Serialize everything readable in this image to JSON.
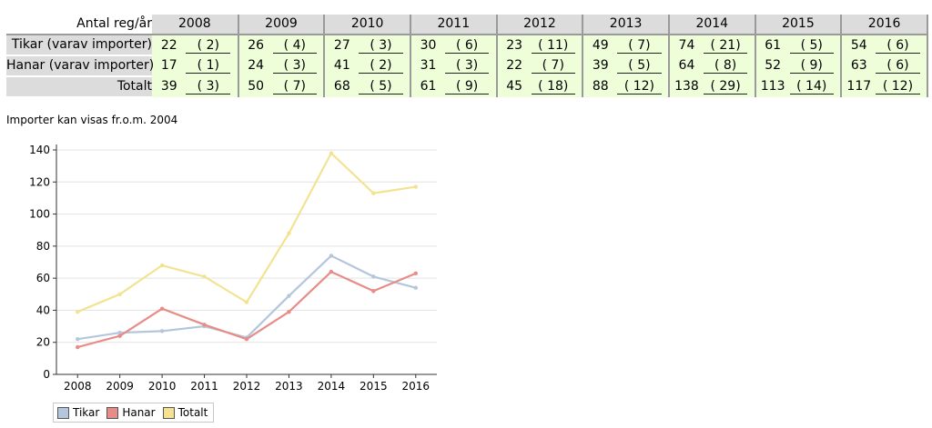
{
  "table": {
    "corner_label": "Antal reg/år",
    "years": [
      "2008",
      "2009",
      "2010",
      "2011",
      "2012",
      "2013",
      "2014",
      "2015",
      "2016"
    ],
    "rows": [
      {
        "label": "Tikar (varav importer)",
        "values": [
          "22",
          "26",
          "27",
          "30",
          "23",
          "49",
          "74",
          "61",
          "54"
        ],
        "imports": [
          "( 2)",
          "( 4)",
          "( 3)",
          "( 6)",
          "( 11)",
          "( 7)",
          "( 21)",
          "( 5)",
          "( 6)"
        ]
      },
      {
        "label": "Hanar (varav importer)",
        "values": [
          "17",
          "24",
          "41",
          "31",
          "22",
          "39",
          "64",
          "52",
          "63"
        ],
        "imports": [
          "( 1)",
          "( 3)",
          "( 2)",
          "( 3)",
          "( 7)",
          "( 5)",
          "( 8)",
          "( 9)",
          "( 6)"
        ]
      },
      {
        "label": "Totalt",
        "values": [
          "39",
          "50",
          "68",
          "61",
          "45",
          "88",
          "138",
          "113",
          "117"
        ],
        "imports": [
          "( 3)",
          "( 7)",
          "( 5)",
          "( 9)",
          "( 18)",
          "( 12)",
          "( 29)",
          "( 14)",
          "( 12)"
        ]
      }
    ]
  },
  "note": "Importer kan visas fr.o.m. 2004",
  "chart_data": {
    "type": "line",
    "categories": [
      "2008",
      "2009",
      "2010",
      "2011",
      "2012",
      "2013",
      "2014",
      "2015",
      "2016"
    ],
    "series": [
      {
        "name": "Tikar",
        "values": [
          22,
          26,
          27,
          30,
          23,
          49,
          74,
          61,
          54
        ],
        "color": "#b4c6dc"
      },
      {
        "name": "Hanar",
        "values": [
          17,
          24,
          41,
          31,
          22,
          39,
          64,
          52,
          63
        ],
        "color": "#e88c88"
      },
      {
        "name": "Totalt",
        "values": [
          39,
          50,
          68,
          61,
          45,
          88,
          138,
          113,
          117
        ],
        "color": "#f3e391"
      }
    ],
    "yticks": [
      "0",
      "20",
      "40",
      "60",
      "80",
      "100",
      "120",
      "140"
    ],
    "ylim": [
      0,
      140
    ],
    "grid": true,
    "legend": "bottom-left"
  }
}
